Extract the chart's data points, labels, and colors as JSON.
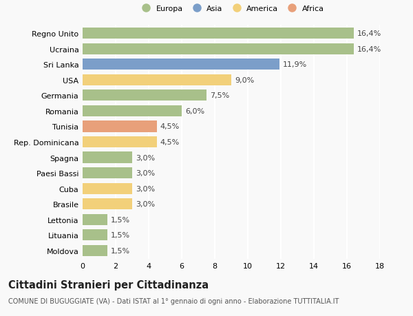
{
  "countries": [
    "Regno Unito",
    "Ucraina",
    "Sri Lanka",
    "USA",
    "Germania",
    "Romania",
    "Tunisia",
    "Rep. Dominicana",
    "Spagna",
    "Paesi Bassi",
    "Cuba",
    "Brasile",
    "Lettonia",
    "Lituania",
    "Moldova"
  ],
  "values": [
    16.4,
    16.4,
    11.9,
    9.0,
    7.5,
    6.0,
    4.5,
    4.5,
    3.0,
    3.0,
    3.0,
    3.0,
    1.5,
    1.5,
    1.5
  ],
  "labels": [
    "16,4%",
    "16,4%",
    "11,9%",
    "9,0%",
    "7,5%",
    "6,0%",
    "4,5%",
    "4,5%",
    "3,0%",
    "3,0%",
    "3,0%",
    "3,0%",
    "1,5%",
    "1,5%",
    "1,5%"
  ],
  "continents": [
    "Europa",
    "Europa",
    "Asia",
    "America",
    "Europa",
    "Europa",
    "Africa",
    "America",
    "Europa",
    "Europa",
    "America",
    "America",
    "Europa",
    "Europa",
    "Europa"
  ],
  "continent_colors": {
    "Europa": "#a8c08a",
    "Asia": "#7b9ec9",
    "America": "#f2d07a",
    "Africa": "#e8a07a"
  },
  "legend_order": [
    "Europa",
    "Asia",
    "America",
    "Africa"
  ],
  "xlim": [
    0,
    18
  ],
  "xticks": [
    0,
    2,
    4,
    6,
    8,
    10,
    12,
    14,
    16,
    18
  ],
  "title": "Cittadini Stranieri per Cittadinanza",
  "subtitle": "COMUNE DI BUGUGGIATE (VA) - Dati ISTAT al 1° gennaio di ogni anno - Elaborazione TUTTITALIA.IT",
  "bg_color": "#f9f9f9",
  "grid_color": "#e8e8e8",
  "bar_height": 0.72,
  "label_fontsize": 8.0,
  "title_fontsize": 10.5,
  "subtitle_fontsize": 7.0
}
